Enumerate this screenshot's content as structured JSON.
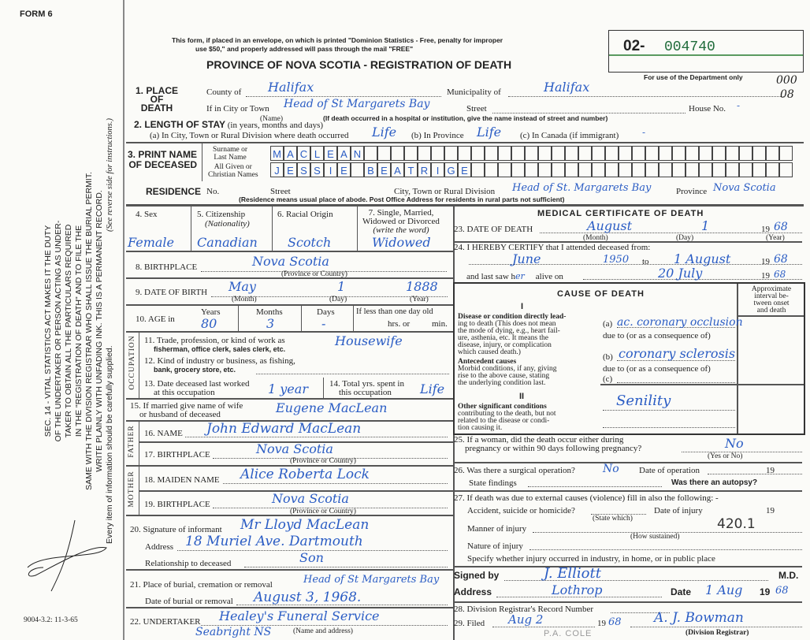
{
  "margin": {
    "form_label": "FORM 6",
    "act_lines": [
      "SEC. 14 - VITAL STATISTICS ACT MAKES IT THE DUTY",
      "OF THE UNDERTAKER OR PERSON ACTING AS UNDER-",
      "TAKER TO OBTAIN ALL THE PARTICULARS REQUIRED",
      "IN THE \"REGISTRATION OF DEATH\" AND TO FILE THE",
      "SAME WITH THE DIVISION REGISTRAR WHO SHALL ISSUE THE BURIAL PERMIT.",
      "WRITE PLAINLY WITH UNFADING INK. THIS IS A PERMANENT RECORD."
    ],
    "every_item": "Every item of information should be carefully supplied.",
    "see_reverse": "(See reverse side for instructions.)",
    "form_number": "9004-3.2: 11-3-65"
  },
  "header": {
    "notice_line1": "This form, if placed in an envelope, on which is printed \"Dominion Statistics - Free, penalty for improper",
    "notice_line2": "use $50,\" and properly addressed will pass through the mail \"FREE\"",
    "title": "PROVINCE OF NOVA SCOTIA - REGISTRATION OF DEATH",
    "serial_prefix": "02-",
    "serial_number": "004740",
    "dept_only": "For use of the Department only",
    "dept_codes": [
      "000",
      "08"
    ]
  },
  "place_of_death": {
    "label": [
      "1. PLACE",
      "OF",
      "DEATH"
    ],
    "county_label": "County of",
    "county": "Halifax",
    "municipality_label": "Municipality of",
    "municipality": "Halifax",
    "city_label": "If in City or Town",
    "city": "Head of St Margarets Bay",
    "name_caption": "(Name)",
    "street_label": "Street",
    "street": "-",
    "house_label": "House No.",
    "house": "-",
    "hospital_note": "(If death occurred in a hospital or institution, give the name instead of street and number)"
  },
  "length_of_stay": {
    "label": "2. LENGTH OF STAY",
    "label_note": "(in years, months and days)",
    "a_label": "(a) In City, Town or Rural Division where death occurred",
    "a": "Life",
    "b_label": "(b) In Province",
    "b": "Life",
    "c_label": "(c) In Canada (if immigrant)",
    "c": "-"
  },
  "name": {
    "label": [
      "3. PRINT NAME",
      "OF DECEASED"
    ],
    "surname_label": [
      "Surname or",
      "Last Name"
    ],
    "given_label": [
      "All Given or",
      "Christian Names"
    ],
    "surname": "MACLEAN",
    "given": "JESSIE BEATRIGE"
  },
  "residence": {
    "label": "RESIDENCE",
    "no_label": "No.",
    "street_label": "Street",
    "city_label": "City, Town or Rural Division",
    "city": "Head of St. Margarets Bay",
    "province_label": "Province",
    "province": "Nova Scotia",
    "note": "(Residence means usual place of abode. Post Office Address for residents in rural parts not sufficient)"
  },
  "personal": {
    "sex_label": "4. Sex",
    "sex": "Female",
    "citizenship_label": "5. Citizenship",
    "citizenship_note": "(Nationality)",
    "citizenship": "Canadian",
    "racial_label": "6. Racial Origin",
    "racial": "Scotch",
    "marital_label": [
      "7. Single, Married,",
      "Widowed or Divorced",
      "(write the word)"
    ],
    "marital": "Widowed",
    "birthplace_label": "8. BIRTHPLACE",
    "birthplace": "Nova Scotia",
    "prov_caption": "(Province or Country)",
    "dob_label": "9. DATE OF BIRTH",
    "dob_month": "May",
    "dob_day": "1",
    "dob_year": "1888",
    "month_caption": "(Month)",
    "day_caption": "(Day)",
    "year_caption": "(Year)",
    "age_label": "10. AGE in",
    "years_label": "Years",
    "years": "80",
    "months_label": "Months",
    "months": "3",
    "days_label": "Days",
    "days": "-",
    "less_day_label": "If less than one day old",
    "hrs_label": "hrs. or",
    "min_label": "min."
  },
  "occupation": {
    "side_label": "OCCUPATION",
    "q11": [
      "11. Trade, profession, or kind of work as",
      "fisherman, office clerk, sales clerk, etc."
    ],
    "a11": "Housewife",
    "q12": [
      "12. Kind of industry or business, as fishing,",
      "bank, grocery store, etc."
    ],
    "q13": [
      "13. Date deceased last worked",
      "at this occupation"
    ],
    "a13": "1 year",
    "q14": [
      "14. Total yrs. spent in",
      "this occupation"
    ],
    "a14": "Life"
  },
  "spouse": {
    "label": [
      "15. If married give name of wife",
      "or husband of deceased"
    ],
    "value": "Eugene MacLean"
  },
  "father": {
    "side_label": "FATHER",
    "name_label": "16. NAME",
    "name": "John Edward MacLean",
    "birthplace_label": "17. BIRTHPLACE",
    "birthplace": "Nova Scotia"
  },
  "mother": {
    "side_label": "MOTHER",
    "name_label": "18. MAIDEN NAME",
    "name": "Alice Roberta Lock",
    "birthplace_label": "19. BIRTHPLACE",
    "birthplace": "Nova Scotia"
  },
  "informant": {
    "sig_label": "20. Signature of informant",
    "sig": "Mr Lloyd MacLean",
    "address_label": "Address",
    "address": "18 Muriel Ave. Dartmouth",
    "relation_label": "Relationship to deceased",
    "relation": "Son"
  },
  "burial": {
    "place_label": "21. Place of burial, cremation or removal",
    "place": "Head of St Margarets Bay",
    "date_label": "Date of burial or removal",
    "date": "August 3, 1968."
  },
  "undertaker": {
    "label": "22. UNDERTAKER",
    "name": "Healey's Funeral Service",
    "address": "Seabright NS",
    "caption": "(Name and address)"
  },
  "medical": {
    "heading": "MEDICAL CERTIFICATE OF DEATH",
    "dod_label": "23. DATE OF DEATH",
    "dod_month": "August",
    "dod_day": "1",
    "dod_year_prefix": "19",
    "dod_year": "68",
    "certify_label": "24. I HEREBY CERTIFY that I attended deceased from:",
    "from": "June",
    "from_year": "1950",
    "to_label": "to",
    "to": "1 August",
    "to_year_prefix": "19",
    "to_year": "68",
    "last_saw_label": "and last saw h",
    "last_saw_her": "er",
    "alive_label": "alive on",
    "last_saw": "20 July",
    "last_saw_year_prefix": "19",
    "last_saw_year": "68"
  },
  "cause": {
    "heading": "CAUSE OF DEATH",
    "interval_label": [
      "Approximate",
      "interval be-",
      "tween onset",
      "and death"
    ],
    "part1": "I",
    "direct_label": [
      "Disease or condition directly lead-",
      "ing to death (This does not mean",
      "the mode of dying, e.g., heart fail-",
      "ure, asthenia, etc. It means the",
      "disease, injury, or complication",
      "which caused death.)"
    ],
    "a_label": "(a)",
    "a": "ac. coronary occlusion",
    "due_to": "due to (or as a consequence of)",
    "antecedent_label": [
      "Antecedent causes",
      "Morbid conditions, if any, giving",
      "rise to the above cause, stating",
      "the underlying condition last."
    ],
    "b_label": "(b)",
    "b": "coronary sclerosis",
    "c_label": "(c)",
    "part2": "II",
    "other_label": [
      "Other significant conditions",
      "contributing to the death, but not",
      "related to the disease or condi-",
      "tion causing it."
    ],
    "other": "Senility"
  },
  "questions": {
    "q25": [
      "25. If a woman, did the death occur either during",
      "pregnancy or within 90 days following pregnancy?"
    ],
    "a25": "No",
    "yes_no": "(Yes or No)",
    "q26": "26. Was there a surgical operation?",
    "a26": "No",
    "op_date_label": "Date of operation",
    "year19": "19",
    "findings_label": "State findings",
    "autopsy_label": "Was there an autopsy?",
    "q27": "27. If death was due to external causes (violence) fill in also the following: -",
    "accident_label": "Accident, suicide or homicide?",
    "state_which": "(State which)",
    "injury_date_label": "Date of injury",
    "manner_label": "Manner of injury",
    "how_sustained": "(How sustained)",
    "code": "420.1",
    "nature_label": "Nature of injury",
    "specify_label": "Specify whether injury occurred in industry, in home, or in public place"
  },
  "signature": {
    "signed_label": "Signed by",
    "signed": "J. Elliott",
    "md": "M.D.",
    "address_label": "Address",
    "address": "Lothrop",
    "date_label": "Date",
    "date": "1 Aug",
    "year_prefix": "19",
    "year": "68"
  },
  "registrar": {
    "q28": "28. Division Registrar's Record Number",
    "q29": "29. Filed",
    "filed": "Aug 2",
    "filed_year_prefix": "19",
    "filed_year": "68",
    "registrar_sig": "A. J. Bowman",
    "registrar_caption": "(Division Registrar)",
    "stamp": "P.A. COLE"
  }
}
